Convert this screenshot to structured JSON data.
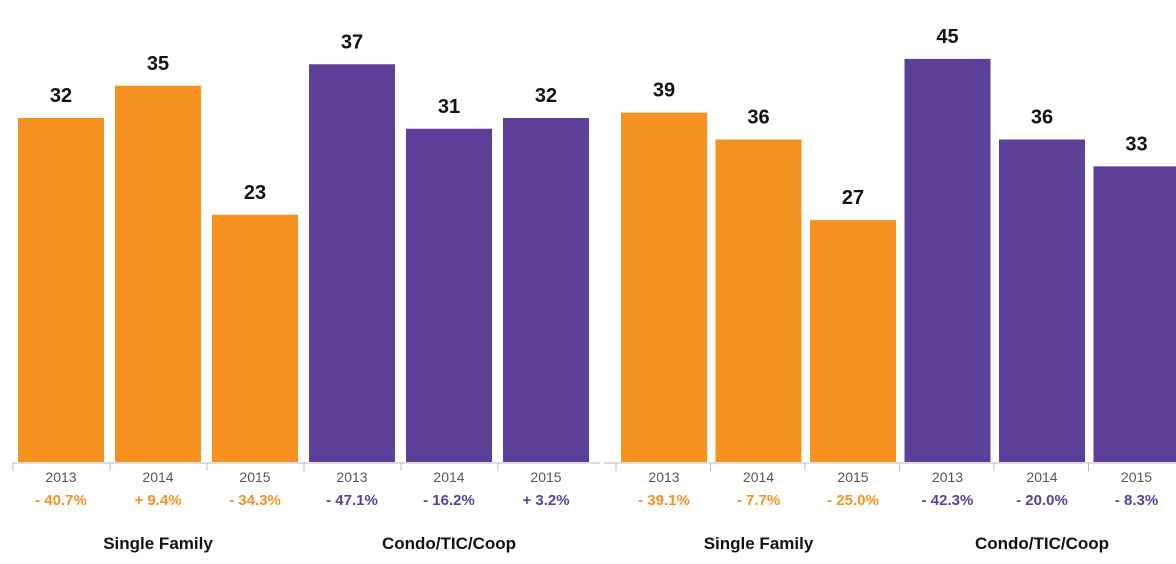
{
  "colors": {
    "single_family": "#F5911E",
    "condo": "#5B3F99",
    "axis": "#BBBBBB",
    "tick_label": "#555555",
    "value_label": "#111111",
    "group_label": "#111111"
  },
  "chart_data": [
    {
      "type": "bar",
      "ylim": [
        0,
        40
      ],
      "groups": [
        {
          "name": "Single Family",
          "color_key": "single_family",
          "categories": [
            "2013",
            "2014",
            "2015"
          ],
          "values": [
            32,
            35,
            23
          ],
          "changes": [
            "- 40.7%",
            "+ 9.4%",
            "- 34.3%"
          ]
        },
        {
          "name": "Condo/TIC/Coop",
          "color_key": "condo",
          "categories": [
            "2013",
            "2014",
            "2015"
          ],
          "values": [
            37,
            31,
            32
          ],
          "changes": [
            "- 47.1%",
            "- 16.2%",
            "+ 3.2%"
          ]
        }
      ]
    },
    {
      "type": "bar",
      "ylim": [
        0,
        48
      ],
      "groups": [
        {
          "name": "Single Family",
          "color_key": "single_family",
          "categories": [
            "2013",
            "2014",
            "2015"
          ],
          "values": [
            39,
            36,
            27
          ],
          "changes": [
            "- 39.1%",
            "- 7.7%",
            "- 25.0%"
          ]
        },
        {
          "name": "Condo/TIC/Coop",
          "color_key": "condo",
          "categories": [
            "2013",
            "2014",
            "2015"
          ],
          "values": [
            45,
            36,
            33
          ],
          "changes": [
            "- 42.3%",
            "- 20.0%",
            "- 8.3%"
          ]
        }
      ]
    }
  ]
}
